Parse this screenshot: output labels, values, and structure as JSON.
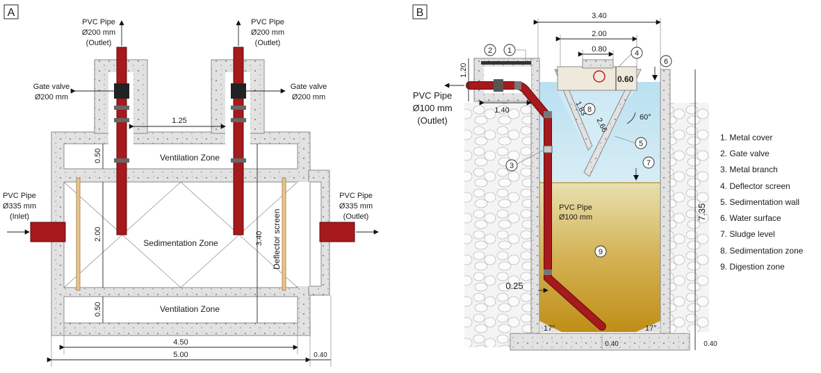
{
  "panel_a": {
    "tag": "A",
    "outlet_left": {
      "line1": "PVC Pipe",
      "line2": "Ø200 mm",
      "line3": "(Outlet)"
    },
    "outlet_right": {
      "line1": "PVC Pipe",
      "line2": "Ø200 mm",
      "line3": "(Outlet)"
    },
    "valve_left": {
      "line1": "Gate valve",
      "line2": "Ø200 mm"
    },
    "valve_right": {
      "line1": "Gate valve",
      "line2": "Ø200 mm"
    },
    "inlet": {
      "line1": "PVC Pipe",
      "line2": "Ø335 mm",
      "line3": "(Inlet)"
    },
    "outlet_side": {
      "line1": "PVC Pipe",
      "line2": "Ø335 mm",
      "line3": "(Outlet)"
    },
    "ventilation_top": "Ventilation Zone",
    "ventilation_bottom": "Ventilation Zone",
    "sedimentation": "Sedimentation Zone",
    "deflector": "Deflector screen",
    "dims": {
      "d125": "1.25",
      "d050a": "0.50",
      "d200": "2.00",
      "d340": "3.40",
      "d050b": "0.50",
      "d450": "4.50",
      "d500": "5.00",
      "d040": "0.40"
    }
  },
  "panel_b": {
    "tag": "B",
    "pipe_outlet": {
      "line1": "PVC Pipe",
      "line2": "Ø100 mm",
      "line3": "(Outlet)"
    },
    "pipe_inner": {
      "line1": "PVC Pipe",
      "line2": "Ø100 mm"
    },
    "dims": {
      "d340": "3.40",
      "d200": "2.00",
      "d080": "0.80",
      "d120": "1.20",
      "d060": "0.60",
      "d140": "1.40",
      "d183": "1.83",
      "d266": "2.66",
      "a60": "60°",
      "d025": "0.25",
      "a17l": "17°",
      "a17r": "17°",
      "d040a": "0.40",
      "d040b": "0.40",
      "d735": "7.35"
    },
    "markers": [
      "1",
      "2",
      "3",
      "4",
      "5",
      "6",
      "7",
      "8",
      "9"
    ]
  },
  "legend": [
    "1. Metal cover",
    "2. Gate valve",
    "3. Metal branch",
    "4. Deflector screen",
    "5. Sedimentation wall",
    "6. Water surface",
    "7. Sludge level",
    "8. Sedimentation zone",
    "9. Digestion zone"
  ],
  "colors": {
    "pipe": "#a6191c",
    "concrete": "#e2e2e2",
    "water": "#bfe3f2",
    "sludge": "#c49a28",
    "soil": "#f2f2f2"
  }
}
